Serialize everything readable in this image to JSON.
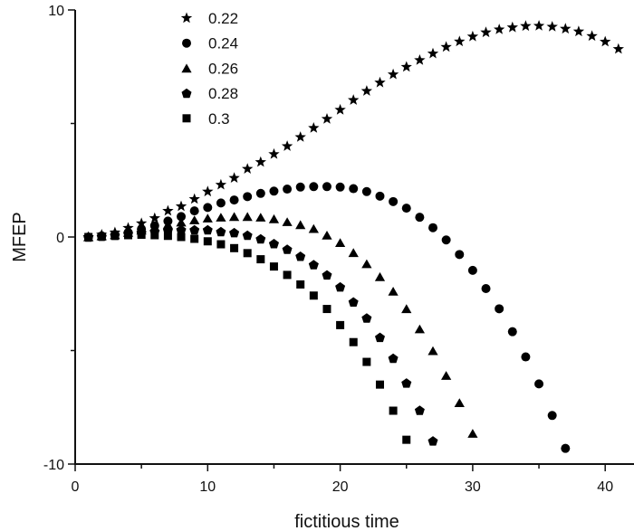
{
  "chart_data": {
    "type": "scatter",
    "title": "",
    "xlabel": "fictitious time",
    "ylabel": "MFEP",
    "xlim": [
      0,
      42.2
    ],
    "ylim": [
      -10,
      10
    ],
    "x_ticks": [
      "0",
      "10",
      "20",
      "30",
      "40"
    ],
    "y_ticks": [
      "-10",
      "0",
      "10"
    ],
    "grid": false,
    "legend_position": "top-left",
    "marker_color": "#000000",
    "series": [
      {
        "name": "0.22",
        "marker": "star",
        "x": [
          1,
          2,
          3,
          4,
          5,
          6,
          7,
          8,
          9,
          10,
          11,
          12,
          13,
          14,
          15,
          16,
          17,
          18,
          19,
          20,
          21,
          22,
          23,
          24,
          25,
          26,
          27,
          28,
          29,
          30,
          31,
          32,
          33,
          34,
          35,
          36,
          37,
          38,
          39,
          40,
          41
        ],
        "y": [
          0,
          0.1,
          0.2,
          0.4,
          0.6,
          0.83,
          1.15,
          1.35,
          1.67,
          2.0,
          2.3,
          2.6,
          3.0,
          3.3,
          3.65,
          4.0,
          4.4,
          4.8,
          5.2,
          5.6,
          6.03,
          6.43,
          6.8,
          7.16,
          7.49,
          7.79,
          8.08,
          8.37,
          8.61,
          8.83,
          9.01,
          9.14,
          9.23,
          9.29,
          9.3,
          9.26,
          9.17,
          9.05,
          8.85,
          8.6,
          8.28
        ]
      },
      {
        "name": "0.24",
        "marker": "circle",
        "x": [
          1,
          2,
          3,
          4,
          5,
          6,
          7,
          8,
          9,
          10,
          11,
          12,
          13,
          14,
          15,
          16,
          17,
          18,
          19,
          20,
          21,
          22,
          23,
          24,
          25,
          26,
          27,
          28,
          29,
          30,
          31,
          32,
          33,
          34,
          35,
          36,
          37
        ],
        "y": [
          0,
          0.05,
          0.1,
          0.2,
          0.35,
          0.5,
          0.7,
          0.9,
          1.15,
          1.3,
          1.5,
          1.63,
          1.78,
          1.92,
          2.02,
          2.11,
          2.2,
          2.22,
          2.22,
          2.2,
          2.13,
          2.0,
          1.8,
          1.56,
          1.27,
          0.87,
          0.41,
          -0.13,
          -0.77,
          -1.47,
          -2.27,
          -3.16,
          -4.17,
          -5.28,
          -6.47,
          -7.86,
          -9.31
        ]
      },
      {
        "name": "0.26",
        "marker": "triangle",
        "x": [
          1,
          2,
          3,
          4,
          5,
          6,
          7,
          8,
          9,
          10,
          11,
          12,
          13,
          14,
          15,
          16,
          17,
          18,
          19,
          20,
          21,
          22,
          23,
          24,
          25,
          26,
          27,
          28,
          29,
          30
        ],
        "y": [
          0,
          0.05,
          0.1,
          0.2,
          0.3,
          0.45,
          0.55,
          0.65,
          0.75,
          0.83,
          0.87,
          0.9,
          0.9,
          0.87,
          0.8,
          0.67,
          0.54,
          0.37,
          0.08,
          -0.25,
          -0.69,
          -1.18,
          -1.75,
          -2.39,
          -3.16,
          -4.05,
          -5.01,
          -6.1,
          -7.3,
          -8.65
        ]
      },
      {
        "name": "0.28",
        "marker": "pentagon",
        "x": [
          1,
          2,
          3,
          4,
          5,
          6,
          7,
          8,
          9,
          10,
          11,
          12,
          13,
          14,
          15,
          16,
          17,
          18,
          19,
          20,
          21,
          22,
          23,
          24,
          25,
          26,
          27
        ],
        "y": [
          0,
          0.03,
          0.08,
          0.15,
          0.2,
          0.25,
          0.3,
          0.32,
          0.32,
          0.32,
          0.24,
          0.19,
          0.08,
          -0.08,
          -0.29,
          -0.54,
          -0.85,
          -1.22,
          -1.67,
          -2.2,
          -2.86,
          -3.57,
          -4.42,
          -5.34,
          -6.43,
          -7.63,
          -8.98
        ]
      },
      {
        "name": "0.3",
        "marker": "square",
        "x": [
          1,
          2,
          3,
          4,
          5,
          6,
          7,
          8,
          9,
          10,
          11,
          12,
          13,
          14,
          15,
          16,
          17,
          18,
          19,
          20,
          21,
          22,
          23,
          24,
          25
        ],
        "y": [
          0,
          0.02,
          0.05,
          0.08,
          0.1,
          0.08,
          0.05,
          0,
          -0.08,
          -0.19,
          -0.32,
          -0.49,
          -0.71,
          -0.98,
          -1.3,
          -1.67,
          -2.09,
          -2.58,
          -3.17,
          -3.88,
          -4.63,
          -5.5,
          -6.5,
          -7.65,
          -8.93
        ]
      }
    ]
  }
}
